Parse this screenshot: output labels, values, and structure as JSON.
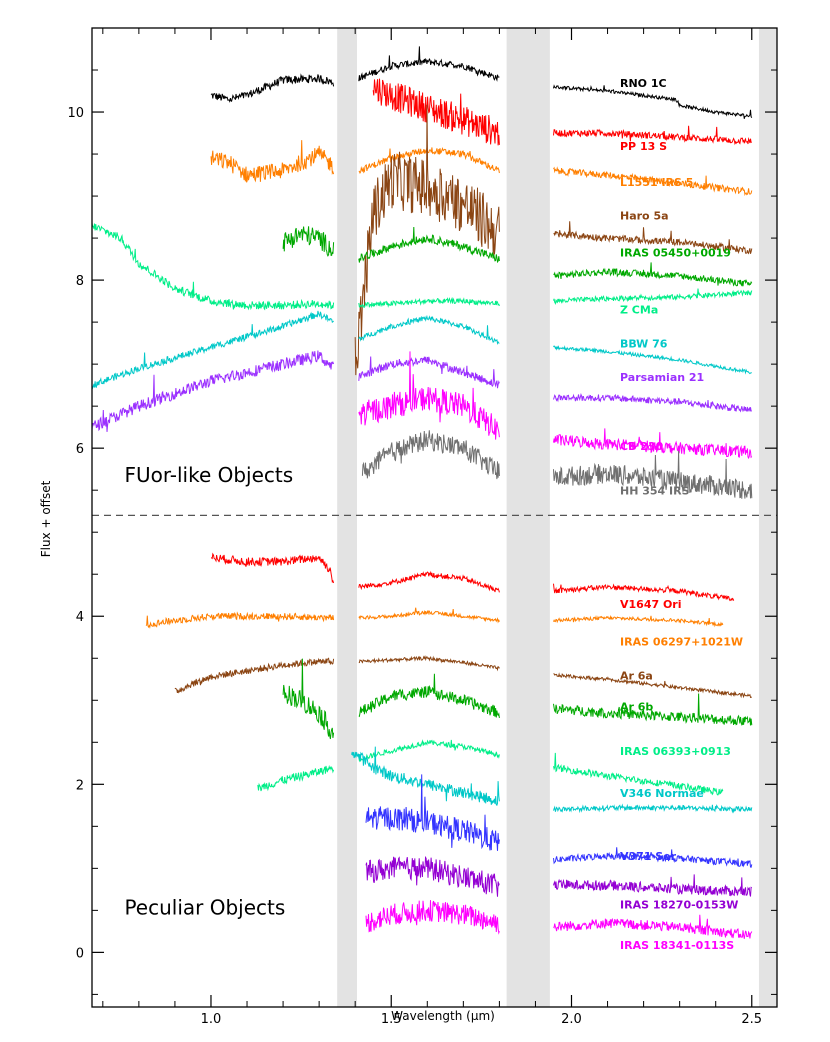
{
  "chart_data": {
    "type": "line",
    "xlabel": "Wavelength (μm)",
    "ylabel": "Flux + offset",
    "xlim": [
      0.67,
      2.57
    ],
    "ylim": [
      -0.65,
      11.0
    ],
    "xticks": [
      1.0,
      1.5,
      2.0,
      2.5
    ],
    "xtick_labels": [
      "1.0",
      "1.5",
      "2.0",
      "2.5"
    ],
    "yticks": [
      0,
      2,
      4,
      6,
      8,
      10
    ],
    "ytick_labels": [
      "0",
      "2",
      "4",
      "6",
      "8",
      "10"
    ],
    "gaps": [
      [
        1.35,
        1.405
      ],
      [
        1.82,
        1.94
      ],
      [
        2.52,
        2.57
      ]
    ],
    "divider_y": 5.2,
    "sections": [
      {
        "label": "FUor-like Objects",
        "x": 0.76,
        "y": 5.6
      },
      {
        "label": "Peculiar Objects",
        "x": 0.76,
        "y": 0.45
      }
    ],
    "series": [
      {
        "name": "RNO 1C",
        "color": "#000000",
        "label_y": 10.3,
        "segments": [
          {
            "x": [
              1.0,
              1.05,
              1.1,
              1.2,
              1.3,
              1.34
            ],
            "y": [
              10.2,
              10.15,
              10.2,
              10.38,
              10.4,
              10.35
            ],
            "noise": 0.05
          },
          {
            "x": [
              1.41,
              1.5,
              1.6,
              1.7,
              1.8
            ],
            "y": [
              10.4,
              10.55,
              10.6,
              10.55,
              10.4
            ],
            "noise": 0.04
          },
          {
            "x": [
              1.95,
              2.1,
              2.29,
              2.3,
              2.4,
              2.5
            ],
            "y": [
              10.3,
              10.25,
              10.15,
              10.08,
              10.0,
              9.95
            ],
            "noise": 0.02
          }
        ]
      },
      {
        "name": "PP 13 S",
        "color": "#ff0000",
        "label_y": 9.55,
        "segments": [
          {
            "x": [
              1.45,
              1.5,
              1.6,
              1.7,
              1.8
            ],
            "y": [
              10.3,
              10.2,
              10.05,
              9.9,
              9.75
            ],
            "noise": 0.18
          },
          {
            "x": [
              1.95,
              2.1,
              2.3,
              2.5
            ],
            "y": [
              9.75,
              9.75,
              9.7,
              9.65
            ],
            "noise": 0.04
          }
        ]
      },
      {
        "name": "L1551 IRS 5",
        "color": "#ff7f00",
        "label_y": 9.12,
        "segments": [
          {
            "x": [
              1.0,
              1.05,
              1.1,
              1.2,
              1.3,
              1.34
            ],
            "y": [
              9.45,
              9.4,
              9.25,
              9.3,
              9.5,
              9.35
            ],
            "noise": 0.1
          },
          {
            "x": [
              1.41,
              1.5,
              1.6,
              1.7,
              1.8
            ],
            "y": [
              9.3,
              9.45,
              9.55,
              9.5,
              9.3
            ],
            "noise": 0.04
          },
          {
            "x": [
              1.95,
              2.1,
              2.3,
              2.5
            ],
            "y": [
              9.3,
              9.25,
              9.15,
              9.05
            ],
            "noise": 0.04
          }
        ]
      },
      {
        "name": "Haro 5a",
        "color": "#8b4513",
        "label_y": 8.72,
        "segments": [
          {
            "x": [
              1.4,
              1.45,
              1.5,
              1.6,
              1.7,
              1.8
            ],
            "y": [
              7.0,
              8.8,
              9.2,
              9.1,
              8.9,
              8.55
            ],
            "noise": 0.35
          },
          {
            "x": [
              1.95,
              2.1,
              2.3,
              2.5
            ],
            "y": [
              8.55,
              8.5,
              8.45,
              8.35
            ],
            "noise": 0.04
          }
        ]
      },
      {
        "name": "IRAS 05450+0019",
        "color": "#00a800",
        "label_y": 8.28,
        "segments": [
          {
            "x": [
              1.2,
              1.25,
              1.3,
              1.34
            ],
            "y": [
              8.45,
              8.55,
              8.5,
              8.35
            ],
            "noise": 0.12
          },
          {
            "x": [
              1.41,
              1.5,
              1.6,
              1.7,
              1.8
            ],
            "y": [
              8.25,
              8.4,
              8.5,
              8.4,
              8.25
            ],
            "noise": 0.05
          },
          {
            "x": [
              1.95,
              2.1,
              2.3,
              2.5
            ],
            "y": [
              8.05,
              8.1,
              8.05,
              7.95
            ],
            "noise": 0.04
          }
        ]
      },
      {
        "name": "Z CMa",
        "color": "#00ee88",
        "label_y": 7.6,
        "segments": [
          {
            "x": [
              0.67,
              0.75,
              0.8,
              0.9,
              1.0,
              1.1,
              1.2,
              1.3,
              1.34
            ],
            "y": [
              8.65,
              8.5,
              8.2,
              7.9,
              7.75,
              7.7,
              7.7,
              7.72,
              7.7
            ],
            "noise": 0.05
          },
          {
            "x": [
              1.41,
              1.5,
              1.6,
              1.7,
              1.8
            ],
            "y": [
              7.7,
              7.72,
              7.75,
              7.75,
              7.72
            ],
            "noise": 0.03
          },
          {
            "x": [
              1.95,
              2.1,
              2.3,
              2.5
            ],
            "y": [
              7.75,
              7.78,
              7.8,
              7.85
            ],
            "noise": 0.03
          }
        ]
      },
      {
        "name": "BBW 76",
        "color": "#00c8c8",
        "label_y": 7.2,
        "segments": [
          {
            "x": [
              0.67,
              0.8,
              1.0,
              1.2,
              1.3,
              1.34
            ],
            "y": [
              6.75,
              6.95,
              7.2,
              7.45,
              7.6,
              7.5
            ],
            "noise": 0.04
          },
          {
            "x": [
              1.41,
              1.5,
              1.6,
              1.7,
              1.8
            ],
            "y": [
              7.3,
              7.45,
              7.55,
              7.45,
              7.25
            ],
            "noise": 0.03
          },
          {
            "x": [
              1.95,
              2.1,
              2.3,
              2.5
            ],
            "y": [
              7.2,
              7.15,
              7.05,
              6.9
            ],
            "noise": 0.02
          }
        ]
      },
      {
        "name": "Parsamian 21",
        "color": "#9b30ff",
        "label_y": 6.8,
        "segments": [
          {
            "x": [
              0.67,
              0.8,
              1.0,
              1.2,
              1.3,
              1.34
            ],
            "y": [
              6.25,
              6.5,
              6.8,
              7.0,
              7.1,
              6.95
            ],
            "noise": 0.07
          },
          {
            "x": [
              1.41,
              1.5,
              1.6,
              1.7,
              1.8
            ],
            "y": [
              6.85,
              7.0,
              7.05,
              6.9,
              6.75
            ],
            "noise": 0.05
          },
          {
            "x": [
              1.95,
              2.1,
              2.3,
              2.5
            ],
            "y": [
              6.6,
              6.6,
              6.55,
              6.45
            ],
            "noise": 0.04
          }
        ]
      },
      {
        "name": "CB 230",
        "color": "#ff00ff",
        "label_y": 5.98,
        "segments": [
          {
            "x": [
              1.41,
              1.5,
              1.6,
              1.7,
              1.8
            ],
            "y": [
              6.4,
              6.5,
              6.6,
              6.5,
              6.2
            ],
            "noise": 0.15
          },
          {
            "x": [
              1.95,
              2.1,
              2.3,
              2.5
            ],
            "y": [
              6.1,
              6.05,
              6.0,
              5.95
            ],
            "noise": 0.07
          }
        ]
      },
      {
        "name": "HH 354 IRS",
        "color": "#707070",
        "label_y": 5.45,
        "segments": [
          {
            "x": [
              1.42,
              1.5,
              1.6,
              1.7,
              1.8
            ],
            "y": [
              5.7,
              5.95,
              6.1,
              6.0,
              5.7
            ],
            "noise": 0.12
          },
          {
            "x": [
              1.95,
              2.1,
              2.3,
              2.5
            ],
            "y": [
              5.65,
              5.7,
              5.6,
              5.5
            ],
            "noise": 0.12
          }
        ]
      },
      {
        "name": "V1647 Ori",
        "color": "#ff0000",
        "label_y": 4.1,
        "segments": [
          {
            "x": [
              1.0,
              1.1,
              1.2,
              1.3,
              1.33,
              1.34
            ],
            "y": [
              4.7,
              4.65,
              4.65,
              4.7,
              4.55,
              4.4
            ],
            "noise": 0.05
          },
          {
            "x": [
              1.41,
              1.5,
              1.6,
              1.7,
              1.8
            ],
            "y": [
              4.35,
              4.4,
              4.5,
              4.45,
              4.3
            ],
            "noise": 0.03
          },
          {
            "x": [
              1.95,
              2.1,
              2.3,
              2.45
            ],
            "y": [
              4.3,
              4.35,
              4.3,
              4.2
            ],
            "noise": 0.03
          }
        ]
      },
      {
        "name": "IRAS 06297+1021W",
        "color": "#ff7f00",
        "label_y": 3.65,
        "segments": [
          {
            "x": [
              0.82,
              0.9,
              1.0,
              1.2,
              1.34
            ],
            "y": [
              3.9,
              3.95,
              4.0,
              4.0,
              3.98
            ],
            "noise": 0.04
          },
          {
            "x": [
              1.41,
              1.5,
              1.6,
              1.7,
              1.8
            ],
            "y": [
              3.98,
              4.0,
              4.05,
              4.0,
              3.95
            ],
            "noise": 0.02
          },
          {
            "x": [
              1.95,
              2.1,
              2.3,
              2.42
            ],
            "y": [
              3.95,
              3.98,
              3.95,
              3.9
            ],
            "noise": 0.02
          }
        ]
      },
      {
        "name": "Ar 6a",
        "color": "#8b4513",
        "label_y": 3.25,
        "segments": [
          {
            "x": [
              0.9,
              0.95,
              1.0,
              1.1,
              1.2,
              1.3,
              1.34
            ],
            "y": [
              3.1,
              3.2,
              3.28,
              3.35,
              3.42,
              3.46,
              3.46
            ],
            "noise": 0.04
          },
          {
            "x": [
              1.41,
              1.5,
              1.6,
              1.7,
              1.8
            ],
            "y": [
              3.46,
              3.48,
              3.5,
              3.45,
              3.38
            ],
            "noise": 0.02
          },
          {
            "x": [
              1.95,
              2.1,
              2.3,
              2.5
            ],
            "y": [
              3.3,
              3.25,
              3.15,
              3.05
            ],
            "noise": 0.02
          }
        ]
      },
      {
        "name": "Ar 6b",
        "color": "#00a800",
        "label_y": 2.88,
        "segments": [
          {
            "x": [
              1.2,
              1.25,
              1.3,
              1.34
            ],
            "y": [
              3.1,
              3.0,
              2.85,
              2.6
            ],
            "noise": 0.12
          },
          {
            "x": [
              1.41,
              1.5,
              1.6,
              1.7,
              1.8
            ],
            "y": [
              2.85,
              3.05,
              3.1,
              3.0,
              2.85
            ],
            "noise": 0.07
          },
          {
            "x": [
              1.95,
              2.1,
              2.3,
              2.5
            ],
            "y": [
              2.9,
              2.85,
              2.8,
              2.75
            ],
            "noise": 0.06
          }
        ]
      },
      {
        "name": "IRAS 06393+0913",
        "color": "#00ee88",
        "label_y": 2.35,
        "segments": [
          {
            "x": [
              1.13,
              1.2,
              1.3,
              1.34
            ],
            "y": [
              1.95,
              2.05,
              2.15,
              2.2
            ],
            "noise": 0.05
          },
          {
            "x": [
              1.41,
              1.5,
              1.6,
              1.7,
              1.8
            ],
            "y": [
              2.3,
              2.4,
              2.5,
              2.45,
              2.35
            ],
            "noise": 0.03
          },
          {
            "x": [
              1.95,
              2.1,
              2.3,
              2.42
            ],
            "y": [
              2.2,
              2.1,
              1.98,
              1.9
            ],
            "noise": 0.04
          }
        ]
      },
      {
        "name": "V346 Normae",
        "color": "#00c8c8",
        "label_y": 1.85,
        "segments": [
          {
            "x": [
              1.39,
              1.45,
              1.5,
              1.6,
              1.7,
              1.8
            ],
            "y": [
              2.4,
              2.2,
              2.1,
              2.0,
              1.9,
              1.8
            ],
            "noise": 0.07
          },
          {
            "x": [
              1.95,
              2.1,
              2.3,
              2.5
            ],
            "y": [
              1.7,
              1.72,
              1.72,
              1.7
            ],
            "noise": 0.03
          }
        ]
      },
      {
        "name": "V371 Ser",
        "color": "#3333ff",
        "label_y": 1.1,
        "segments": [
          {
            "x": [
              1.43,
              1.5,
              1.6,
              1.7,
              1.8
            ],
            "y": [
              1.6,
              1.6,
              1.55,
              1.45,
              1.3
            ],
            "noise": 0.14
          },
          {
            "x": [
              1.95,
              2.1,
              2.3,
              2.5
            ],
            "y": [
              1.1,
              1.15,
              1.12,
              1.05
            ],
            "noise": 0.04
          }
        ]
      },
      {
        "name": "IRAS 18270-0153W",
        "color": "#9400d3",
        "label_y": 0.52,
        "segments": [
          {
            "x": [
              1.43,
              1.5,
              1.6,
              1.7,
              1.8
            ],
            "y": [
              0.95,
              1.0,
              1.0,
              0.9,
              0.78
            ],
            "noise": 0.14
          },
          {
            "x": [
              1.95,
              2.1,
              2.3,
              2.5
            ],
            "y": [
              0.8,
              0.8,
              0.75,
              0.72
            ],
            "noise": 0.06
          }
        ]
      },
      {
        "name": "IRAS 18341-0113S",
        "color": "#ff00ff",
        "label_y": 0.04,
        "segments": [
          {
            "x": [
              1.43,
              1.5,
              1.6,
              1.7,
              1.8
            ],
            "y": [
              0.35,
              0.45,
              0.5,
              0.45,
              0.35
            ],
            "noise": 0.13
          },
          {
            "x": [
              1.95,
              2.1,
              2.3,
              2.5
            ],
            "y": [
              0.3,
              0.35,
              0.3,
              0.2
            ],
            "noise": 0.06
          }
        ]
      }
    ]
  }
}
